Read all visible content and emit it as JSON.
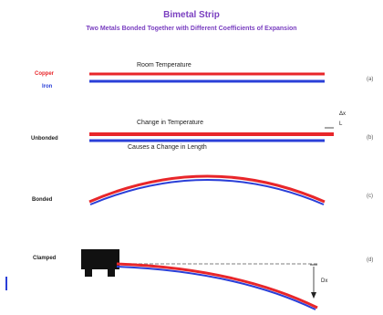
{
  "title": "Bimetal Strip",
  "subtitle": "Two Metals Bonded Together with Different Coefficients of Expansion",
  "labels": {
    "copper": "Copper",
    "iron": "Iron",
    "unbonded": "Unbonded",
    "bonded": "Bonded",
    "clamped": "Clamped"
  },
  "captions": {
    "room_temperature": "Room Temperature",
    "change_in_temperature": "Change in Temperature",
    "causes_change": "Causes a Change in Length",
    "delta_l": "Δx",
    "delta_l_sub": "L",
    "dx": "Dx"
  },
  "panels": [
    "(a)",
    "(b)",
    "(c)",
    "(d)"
  ],
  "colors": {
    "copper": "#e8262a",
    "iron": "#2a3fd8",
    "title": "#7a3fc0",
    "clamp": "#111111"
  }
}
